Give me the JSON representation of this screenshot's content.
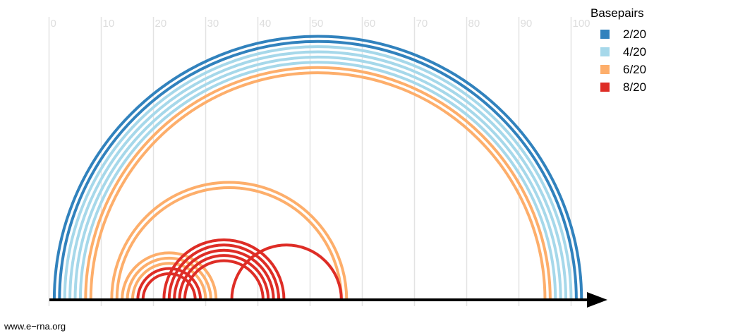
{
  "chart_data": {
    "type": "arc",
    "x_ticks": [
      0,
      10,
      20,
      30,
      40,
      50,
      60,
      70,
      80,
      90,
      100
    ],
    "xlim": [
      0,
      100
    ],
    "grid": true,
    "legend": {
      "title": "Basepairs",
      "position": "top-right",
      "entries": [
        {
          "label": "2/20",
          "color": "#3182bd"
        },
        {
          "label": "4/20",
          "color": "#a6d8ea"
        },
        {
          "label": "6/20",
          "color": "#fdae6b"
        },
        {
          "label": "8/20",
          "color": "#de2d26"
        }
      ]
    },
    "arcs": [
      {
        "start": 1,
        "end": 102,
        "group": 0
      },
      {
        "start": 2,
        "end": 101,
        "group": 0
      },
      {
        "start": 3,
        "end": 100,
        "group": 1
      },
      {
        "start": 4,
        "end": 99,
        "group": 1
      },
      {
        "start": 5,
        "end": 98,
        "group": 1
      },
      {
        "start": 6,
        "end": 97,
        "group": 1
      },
      {
        "start": 7,
        "end": 96,
        "group": 2
      },
      {
        "start": 8,
        "end": 95,
        "group": 2
      },
      {
        "start": 12,
        "end": 57,
        "group": 2
      },
      {
        "start": 13,
        "end": 56,
        "group": 2
      },
      {
        "start": 14,
        "end": 32,
        "group": 2
      },
      {
        "start": 15,
        "end": 31,
        "group": 2
      },
      {
        "start": 16,
        "end": 30,
        "group": 2
      },
      {
        "start": 17,
        "end": 29,
        "group": 3
      },
      {
        "start": 18,
        "end": 28,
        "group": 3
      },
      {
        "start": 22,
        "end": 45,
        "group": 3
      },
      {
        "start": 23,
        "end": 44,
        "group": 3
      },
      {
        "start": 24,
        "end": 43,
        "group": 3
      },
      {
        "start": 25,
        "end": 42,
        "group": 3
      },
      {
        "start": 26,
        "end": 41,
        "group": 3
      },
      {
        "start": 35,
        "end": 56,
        "group": 3
      }
    ]
  },
  "credit": "www.e−rna.org"
}
